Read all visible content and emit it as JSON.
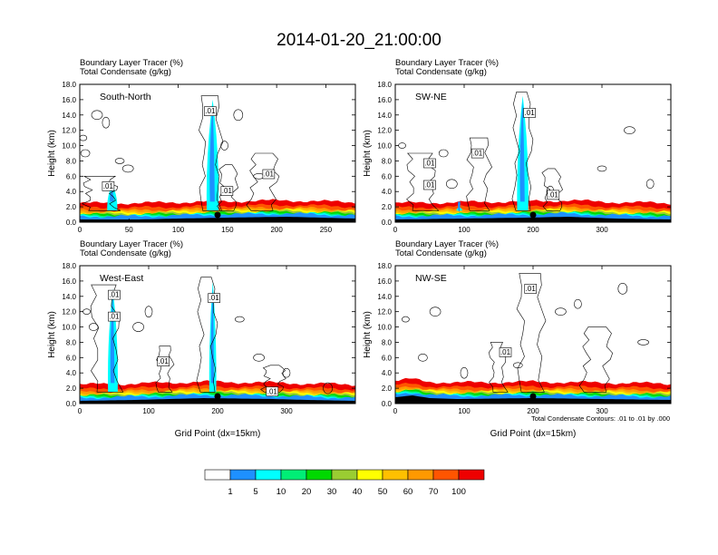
{
  "figure": {
    "title": "2014-01-20_21:00:00",
    "footnote": "Total Condensate Contours: .01 to .01 by .000"
  },
  "colorbar": {
    "labels": [
      "1",
      "5",
      "10",
      "20",
      "30",
      "40",
      "50",
      "60",
      "70",
      "100"
    ],
    "colors": [
      "#ffffff",
      "#1e90ff",
      "#00ffff",
      "#00ee76",
      "#00d900",
      "#9acd32",
      "#ffff00",
      "#ffc000",
      "#ff9900",
      "#ff5500",
      "#ee0000"
    ]
  },
  "chart_data": [
    {
      "type": "heatmap",
      "panel_label": "South-North",
      "subtitle_line1": "Boundary Layer Tracer   (%)",
      "subtitle_line2": "Total Condensate   (g/kg)",
      "ylabel": "Height (km)",
      "xlabel": "",
      "xlim": [
        0,
        280
      ],
      "ylim": [
        0,
        18
      ],
      "xticks": [
        "0",
        "50",
        "100",
        "150",
        "200",
        "250"
      ],
      "yticks": [
        "0.0",
        "2.0",
        "4.0",
        "6.0",
        "8.0",
        "10.0",
        "12.0",
        "14.0",
        "16.0",
        "18.0"
      ],
      "contour_labels": [
        ".01",
        ".01",
        ".01",
        ".01"
      ],
      "marker_x": 140
    },
    {
      "type": "heatmap",
      "panel_label": "SW-NE",
      "subtitle_line1": "Boundary Layer Tracer   (%)",
      "subtitle_line2": "Total Condensate   (g/kg)",
      "ylabel": "Height (km)",
      "xlabel": "",
      "xlim": [
        0,
        400
      ],
      "ylim": [
        0,
        18
      ],
      "xticks": [
        "0",
        "100",
        "200",
        "300"
      ],
      "yticks": [
        "0.0",
        "2.0",
        "4.0",
        "6.0",
        "8.0",
        "10.0",
        "12.0",
        "14.0",
        "16.0",
        "18.0"
      ],
      "contour_labels": [
        ".01",
        ".01",
        ".01",
        ".01",
        ".01"
      ],
      "marker_x": 200
    },
    {
      "type": "heatmap",
      "panel_label": "West-East",
      "subtitle_line1": "Boundary Layer Tracer   (%)",
      "subtitle_line2": "Total Condensate   (g/kg)",
      "ylabel": "Height (km)",
      "xlabel": "Grid Point (dx=15km)",
      "xlim": [
        0,
        400
      ],
      "ylim": [
        0,
        18
      ],
      "xticks": [
        "0",
        "100",
        "200",
        "300"
      ],
      "yticks": [
        "0.0",
        "2.0",
        "4.0",
        "6.0",
        "8.0",
        "10.0",
        "12.0",
        "14.0",
        "16.0",
        "18.0"
      ],
      "contour_labels": [
        ".01",
        ".01",
        ".01",
        ".01",
        ".01"
      ],
      "marker_x": 200
    },
    {
      "type": "heatmap",
      "panel_label": "NW-SE",
      "subtitle_line1": "Boundary Layer Tracer   (%)",
      "subtitle_line2": "Total Condensate   (g/kg)",
      "ylabel": "Height (km)",
      "xlabel": "Grid Point (dx=15km)",
      "xlim": [
        0,
        400
      ],
      "ylim": [
        0,
        18
      ],
      "xticks": [
        "0",
        "100",
        "200",
        "300"
      ],
      "yticks": [
        "0.0",
        "2.0",
        "4.0",
        "6.0",
        "8.0",
        "10.0",
        "12.0",
        "14.0",
        "16.0",
        "18.0"
      ],
      "contour_labels": [
        ".01",
        ".01"
      ],
      "marker_x": 200
    }
  ]
}
